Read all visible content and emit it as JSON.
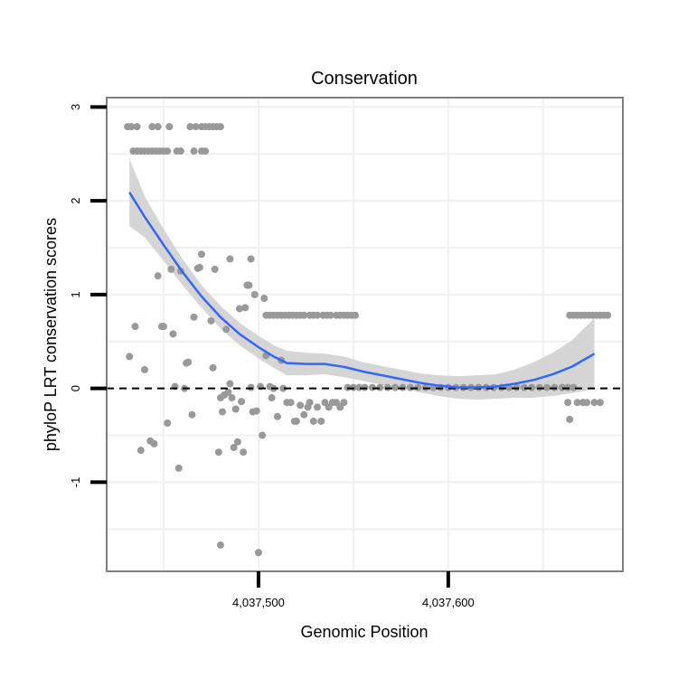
{
  "chart_data": {
    "type": "scatter",
    "title": "Conservation",
    "xlabel": "Genomic Position",
    "ylabel": "phyloP LRT conservation scores",
    "xlim": [
      4037420,
      4037692
    ],
    "ylim": [
      -1.95,
      3.1
    ],
    "x_ticks": [
      {
        "value": 4037500,
        "label": "4,037,500"
      },
      {
        "value": 4037600,
        "label": "4,037,600"
      }
    ],
    "y_ticks": [
      {
        "value": -1,
        "label": "-1"
      },
      {
        "value": 0,
        "label": "0"
      },
      {
        "value": 1,
        "label": "1"
      },
      {
        "value": 2,
        "label": "2"
      },
      {
        "value": 3,
        "label": "3"
      }
    ],
    "reference_line": {
      "y": 0,
      "style": "dashed"
    },
    "grid": true,
    "colors": {
      "points": "#999999",
      "smooth": "#3366ff",
      "band": "#d0d0d0",
      "panel_border": "#7f7f7f",
      "grid": "#f0f0f0"
    },
    "points": [
      [
        4037431,
        2.79
      ],
      [
        4037433,
        2.79
      ],
      [
        4037436,
        2.79
      ],
      [
        4037444,
        2.79
      ],
      [
        4037447,
        2.79
      ],
      [
        4037453,
        2.79
      ],
      [
        4037464,
        2.79
      ],
      [
        4037467,
        2.79
      ],
      [
        4037470,
        2.79
      ],
      [
        4037472,
        2.79
      ],
      [
        4037474,
        2.79
      ],
      [
        4037476,
        2.79
      ],
      [
        4037478,
        2.79
      ],
      [
        4037480,
        2.79
      ],
      [
        4037434,
        2.53
      ],
      [
        4037436,
        2.53
      ],
      [
        4037438,
        2.53
      ],
      [
        4037440,
        2.53
      ],
      [
        4037442,
        2.53
      ],
      [
        4037444,
        2.53
      ],
      [
        4037446,
        2.53
      ],
      [
        4037448,
        2.53
      ],
      [
        4037450,
        2.53
      ],
      [
        4037452,
        2.53
      ],
      [
        4037457,
        2.53
      ],
      [
        4037459,
        2.53
      ],
      [
        4037466,
        2.53
      ],
      [
        4037470,
        2.53
      ],
      [
        4037472,
        2.53
      ],
      [
        4037432,
        0.34
      ],
      [
        4037435,
        0.66
      ],
      [
        4037438,
        -0.66
      ],
      [
        4037440,
        0.2
      ],
      [
        4037443,
        -0.56
      ],
      [
        4037445,
        -0.59
      ],
      [
        4037447,
        1.2
      ],
      [
        4037449,
        0.66
      ],
      [
        4037450,
        0.66
      ],
      [
        4037452,
        -0.37
      ],
      [
        4037454,
        1.27
      ],
      [
        4037455,
        0.58
      ],
      [
        4037456,
        0.02
      ],
      [
        4037458,
        -0.85
      ],
      [
        4037459,
        1.25
      ],
      [
        4037461,
        0.0
      ],
      [
        4037462,
        0.27
      ],
      [
        4037463,
        0.28
      ],
      [
        4037465,
        -0.28
      ],
      [
        4037466,
        0.76
      ],
      [
        4037468,
        1.28
      ],
      [
        4037469,
        1.29
      ],
      [
        4037470,
        1.43
      ],
      [
        4037475,
        0.72
      ],
      [
        4037476,
        0.22
      ],
      [
        4037477,
        1.27
      ],
      [
        4037479,
        -0.68
      ],
      [
        4037480,
        -1.67
      ],
      [
        4037480,
        -0.1
      ],
      [
        4037481,
        -0.25
      ],
      [
        4037482,
        -0.07
      ],
      [
        4037483,
        0.63
      ],
      [
        4037484,
        -0.04
      ],
      [
        4037485,
        0.05
      ],
      [
        4037485,
        1.38
      ],
      [
        4037486,
        -0.1
      ],
      [
        4037487,
        -0.63
      ],
      [
        4037488,
        -0.22
      ],
      [
        4037489,
        -0.57
      ],
      [
        4037490,
        0.85
      ],
      [
        4037491,
        -0.14
      ],
      [
        4037492,
        -0.68
      ],
      [
        4037493,
        0.86
      ],
      [
        4037494,
        1.1
      ],
      [
        4037495,
        1.1
      ],
      [
        4037496,
        0.01
      ],
      [
        4037496,
        1.38
      ],
      [
        4037497,
        -0.25
      ],
      [
        4037498,
        1.0
      ],
      [
        4037499,
        -0.24
      ],
      [
        4037500,
        -1.75
      ],
      [
        4037501,
        0.02
      ],
      [
        4037502,
        -0.5
      ],
      [
        4037503,
        0.96
      ],
      [
        4037504,
        0.35
      ],
      [
        4037506,
        0.02
      ],
      [
        4037507,
        -0.1
      ],
      [
        4037508,
        0.0
      ],
      [
        4037510,
        -0.3
      ],
      [
        4037512,
        0.3
      ],
      [
        4037513,
        0.0
      ],
      [
        4037515,
        -0.15
      ],
      [
        4037517,
        -0.15
      ],
      [
        4037519,
        -0.35
      ],
      [
        4037520,
        -0.35
      ],
      [
        4037522,
        -0.18
      ],
      [
        4037524,
        -0.28
      ],
      [
        4037526,
        -0.2
      ],
      [
        4037527,
        -0.15
      ],
      [
        4037529,
        -0.35
      ],
      [
        4037531,
        -0.2
      ],
      [
        4037533,
        -0.35
      ],
      [
        4037535,
        -0.15
      ],
      [
        4037537,
        -0.2
      ],
      [
        4037539,
        -0.15
      ],
      [
        4037541,
        -0.15
      ],
      [
        4037543,
        -0.2
      ],
      [
        4037545,
        -0.15
      ],
      [
        4037504,
        0.78
      ],
      [
        4037506,
        0.78
      ],
      [
        4037508,
        0.78
      ],
      [
        4037510,
        0.78
      ],
      [
        4037512,
        0.78
      ],
      [
        4037514,
        0.78
      ],
      [
        4037516,
        0.78
      ],
      [
        4037518,
        0.78
      ],
      [
        4037520,
        0.78
      ],
      [
        4037522,
        0.78
      ],
      [
        4037524,
        0.78
      ],
      [
        4037527,
        0.78
      ],
      [
        4037529,
        0.78
      ],
      [
        4037531,
        0.78
      ],
      [
        4037534,
        0.78
      ],
      [
        4037536,
        0.78
      ],
      [
        4037538,
        0.78
      ],
      [
        4037541,
        0.78
      ],
      [
        4037543,
        0.78
      ],
      [
        4037545,
        0.78
      ],
      [
        4037547,
        0.78
      ],
      [
        4037549,
        0.78
      ],
      [
        4037551,
        0.78
      ],
      [
        4037547,
        0.01
      ],
      [
        4037550,
        0.01
      ],
      [
        4037553,
        0.01
      ],
      [
        4037556,
        0.01
      ],
      [
        4037560,
        0.01
      ],
      [
        4037564,
        0.01
      ],
      [
        4037568,
        0.01
      ],
      [
        4037572,
        0.01
      ],
      [
        4037576,
        0.01
      ],
      [
        4037580,
        0.01
      ],
      [
        4037584,
        0.01
      ],
      [
        4037588,
        0.01
      ],
      [
        4037592,
        0.01
      ],
      [
        4037596,
        0.01
      ],
      [
        4037600,
        0.01
      ],
      [
        4037604,
        0.01
      ],
      [
        4037608,
        0.01
      ],
      [
        4037612,
        0.01
      ],
      [
        4037616,
        0.01
      ],
      [
        4037620,
        0.01
      ],
      [
        4037624,
        0.01
      ],
      [
        4037628,
        0.01
      ],
      [
        4037632,
        0.01
      ],
      [
        4037636,
        0.01
      ],
      [
        4037640,
        0.01
      ],
      [
        4037644,
        0.01
      ],
      [
        4037648,
        0.01
      ],
      [
        4037652,
        0.01
      ],
      [
        4037656,
        0.01
      ],
      [
        4037660,
        0.01
      ],
      [
        4037663,
        0.01
      ],
      [
        4037666,
        0.01
      ],
      [
        4037664,
        0.78
      ],
      [
        4037666,
        0.78
      ],
      [
        4037668,
        0.78
      ],
      [
        4037670,
        0.78
      ],
      [
        4037672,
        0.78
      ],
      [
        4037674,
        0.78
      ],
      [
        4037676,
        0.78
      ],
      [
        4037678,
        0.78
      ],
      [
        4037680,
        0.78
      ],
      [
        4037682,
        0.78
      ],
      [
        4037684,
        0.78
      ],
      [
        4037663,
        -0.15
      ],
      [
        4037664,
        -0.33
      ],
      [
        4037668,
        -0.15
      ],
      [
        4037671,
        -0.15
      ],
      [
        4037673,
        -0.15
      ],
      [
        4037677,
        -0.15
      ],
      [
        4037680,
        -0.15
      ]
    ],
    "smooth": [
      [
        4037432,
        2.09
      ],
      [
        4037440,
        1.83
      ],
      [
        4037450,
        1.53
      ],
      [
        4037460,
        1.24
      ],
      [
        4037470,
        0.98
      ],
      [
        4037480,
        0.76
      ],
      [
        4037490,
        0.58
      ],
      [
        4037500,
        0.44
      ],
      [
        4037508,
        0.34
      ],
      [
        4037515,
        0.27
      ],
      [
        4037525,
        0.26
      ],
      [
        4037535,
        0.26
      ],
      [
        4037545,
        0.23
      ],
      [
        4037555,
        0.18
      ],
      [
        4037565,
        0.14
      ],
      [
        4037575,
        0.1
      ],
      [
        4037585,
        0.06
      ],
      [
        4037595,
        0.03
      ],
      [
        4037605,
        0.01
      ],
      [
        4037615,
        0.01
      ],
      [
        4037625,
        0.02
      ],
      [
        4037635,
        0.05
      ],
      [
        4037645,
        0.09
      ],
      [
        4037655,
        0.15
      ],
      [
        4037665,
        0.23
      ],
      [
        4037677,
        0.37
      ]
    ],
    "band_upper": [
      [
        4037432,
        2.45
      ],
      [
        4037440,
        2.05
      ],
      [
        4037450,
        1.7
      ],
      [
        4037460,
        1.38
      ],
      [
        4037470,
        1.1
      ],
      [
        4037480,
        0.88
      ],
      [
        4037490,
        0.7
      ],
      [
        4037500,
        0.56
      ],
      [
        4037508,
        0.46
      ],
      [
        4037515,
        0.4
      ],
      [
        4037525,
        0.38
      ],
      [
        4037535,
        0.37
      ],
      [
        4037545,
        0.34
      ],
      [
        4037555,
        0.28
      ],
      [
        4037565,
        0.24
      ],
      [
        4037575,
        0.2
      ],
      [
        4037585,
        0.16
      ],
      [
        4037595,
        0.14
      ],
      [
        4037605,
        0.13
      ],
      [
        4037615,
        0.14
      ],
      [
        4037625,
        0.15
      ],
      [
        4037635,
        0.2
      ],
      [
        4037645,
        0.28
      ],
      [
        4037655,
        0.38
      ],
      [
        4037665,
        0.51
      ],
      [
        4037677,
        0.75
      ]
    ],
    "band_lower": [
      [
        4037432,
        1.73
      ],
      [
        4037440,
        1.61
      ],
      [
        4037450,
        1.36
      ],
      [
        4037460,
        1.1
      ],
      [
        4037470,
        0.86
      ],
      [
        4037480,
        0.64
      ],
      [
        4037490,
        0.46
      ],
      [
        4037500,
        0.32
      ],
      [
        4037508,
        0.22
      ],
      [
        4037515,
        0.14
      ],
      [
        4037525,
        0.14
      ],
      [
        4037535,
        0.15
      ],
      [
        4037545,
        0.12
      ],
      [
        4037555,
        0.08
      ],
      [
        4037565,
        0.04
      ],
      [
        4037575,
        0.0
      ],
      [
        4037585,
        -0.04
      ],
      [
        4037595,
        -0.08
      ],
      [
        4037605,
        -0.11
      ],
      [
        4037615,
        -0.12
      ],
      [
        4037625,
        -0.11
      ],
      [
        4037635,
        -0.1
      ],
      [
        4037645,
        -0.1
      ],
      [
        4037655,
        -0.08
      ],
      [
        4037665,
        -0.05
      ],
      [
        4037677,
        -0.01
      ]
    ]
  }
}
